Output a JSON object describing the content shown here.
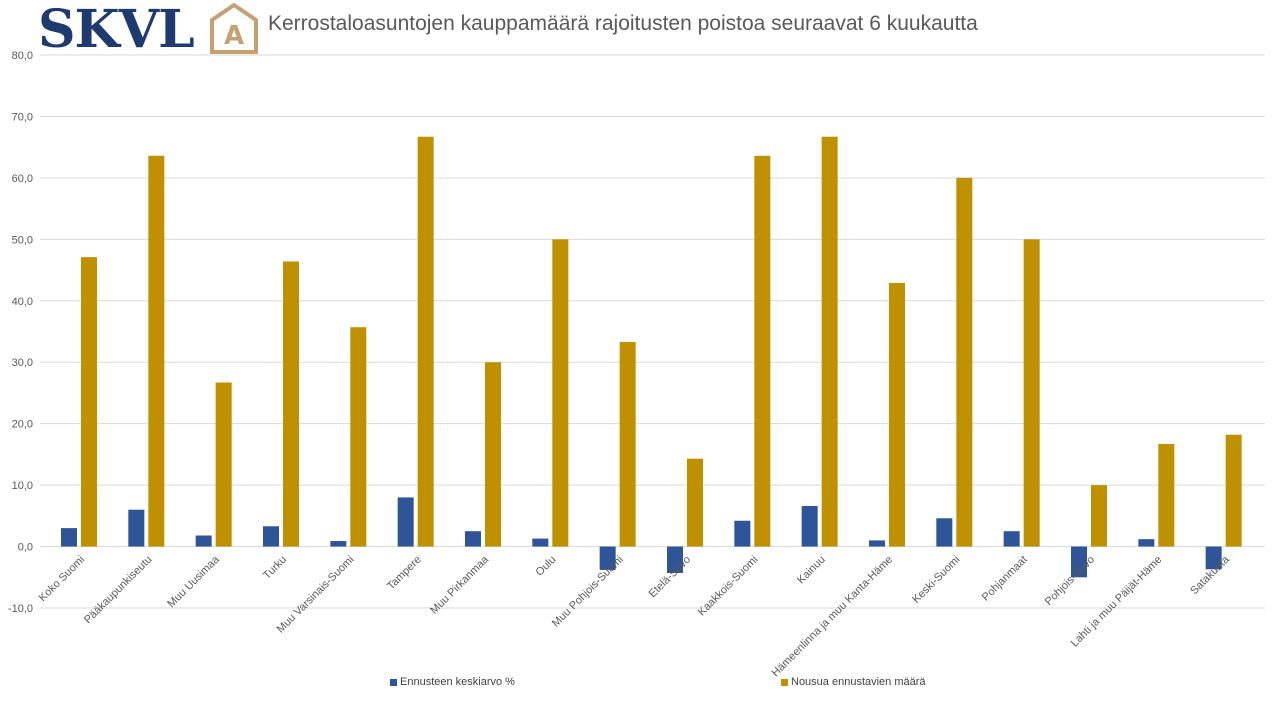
{
  "logo": {
    "text": "SKVL",
    "mark_letter": "A"
  },
  "colors": {
    "series1": "#2e5597",
    "series2": "#bf9000",
    "logo_blue": "#1f3a6e",
    "logo_gold": "#c5a070",
    "grid": "#d9d9d9"
  },
  "chart_data": {
    "type": "bar",
    "title": "Kerrostaloasuntojen kauppamäärä rajoitusten poistoa seuraavat 6 kuukautta",
    "categories": [
      "Koko Suomi",
      "Pääkaupunkiseutu",
      "Muu Uusimaa",
      "Turku",
      "Muu Varsinais-Suomi",
      "Tampere",
      "Muu Pirkanmaa",
      "Oulu",
      "Muu Pohjois-Suomi",
      "Etelä-Savo",
      "Kaakkois-Suomi",
      "Kainuu",
      "Hämeenlinna ja muu Kanta-Häme",
      "Keski-Suomi",
      "Pohjanmaat",
      "Pohjois-Savo",
      "Lahti ja muu Päijät-Häme",
      "Satakunta"
    ],
    "series": [
      {
        "name": "Ennusteen keskiarvo %",
        "values": [
          3.0,
          6.0,
          1.8,
          3.3,
          0.9,
          8.0,
          2.5,
          1.3,
          -3.8,
          -4.3,
          4.2,
          6.6,
          1.0,
          4.6,
          2.5,
          -5.0,
          1.2,
          -3.7
        ]
      },
      {
        "name": "Nousua ennustavien määrä",
        "values": [
          47.1,
          63.6,
          26.7,
          46.4,
          35.7,
          66.7,
          30.0,
          50.0,
          33.3,
          14.3,
          63.6,
          66.7,
          42.9,
          60.0,
          50.0,
          10.0,
          16.7,
          18.2
        ]
      }
    ],
    "yticks": [
      "80,0",
      "70,0",
      "60,0",
      "50,0",
      "40,0",
      "30,0",
      "20,0",
      "10,0",
      "0,0",
      "-10,0"
    ],
    "ylim": [
      -10,
      80
    ],
    "grid": true,
    "legend_position": "bottom"
  }
}
